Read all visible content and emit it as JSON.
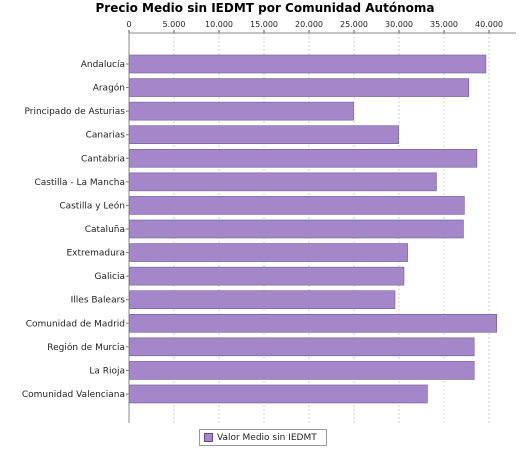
{
  "chart_data": {
    "type": "bar",
    "orientation": "horizontal",
    "title": "Precio Medio sin IEDMT por Comunidad Autónoma",
    "xlabel": "",
    "ylabel": "",
    "xlim": [
      0,
      43000
    ],
    "x_ticks": [
      0,
      5000,
      10000,
      15000,
      20000,
      25000,
      30000,
      35000,
      40000
    ],
    "x_tick_labels": [
      "0",
      "5.000",
      "10.000",
      "15.000",
      "20.000",
      "25.000",
      "30.000",
      "35.000",
      "40.000"
    ],
    "x_axis_position": "top",
    "grid": "vertical dashed",
    "legend_position": "bottom-center",
    "categories": [
      "Andalucía",
      "Aragón",
      "Principado de Asturias",
      "Canarias",
      "Cantabria",
      "Castilla - La Mancha",
      "Castilla y León",
      "Cataluña",
      "Extremadura",
      "Galicia",
      "Illes Balears",
      "Comunidad de Madrid",
      "Región de Murcia",
      "La Rioja",
      "Comunidad Valenciana"
    ],
    "series": [
      {
        "name": "Valor Medio sin IEDMT",
        "color": "#a487c9",
        "values": [
          39600,
          37700,
          24900,
          29900,
          38600,
          34100,
          37200,
          37100,
          30900,
          30500,
          29500,
          40800,
          38300,
          38300,
          33100
        ]
      }
    ]
  }
}
